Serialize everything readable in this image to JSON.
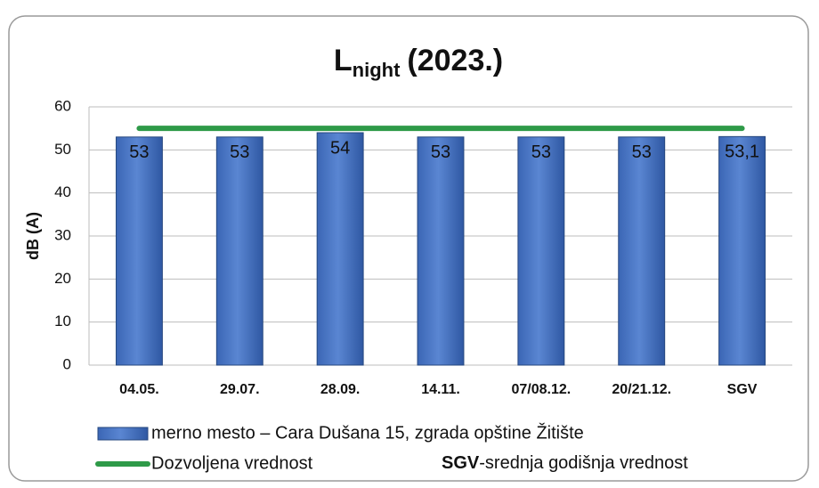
{
  "chart_data": {
    "type": "bar",
    "title_parts": [
      "L",
      "night",
      "(2023.)"
    ],
    "y_label": "dB (A)",
    "categories": [
      "04.05.",
      "29.07.",
      "28.09.",
      "14.11.",
      "07/08.12.",
      "20/21.12.",
      "SGV"
    ],
    "series": [
      {
        "name": "merno mesto – Cara Dušana 15, zgrada opštine Žitište",
        "type": "bar",
        "color": "#4472c4",
        "values": [
          53,
          53,
          54,
          53,
          53,
          53,
          53.1
        ],
        "value_labels": [
          "53",
          "53",
          "54",
          "53",
          "53",
          "53",
          "53,1"
        ]
      },
      {
        "name": "Dozvoljena vrednost",
        "type": "line",
        "color": "#2e9a48",
        "values": [
          55,
          55,
          55,
          55,
          55,
          55,
          55
        ]
      }
    ],
    "legend_note": {
      "abbr": "SGV",
      "text": "-srednja godišnja vrednost"
    },
    "ylim": [
      0,
      60
    ],
    "yticks": [
      0,
      10,
      20,
      30,
      40,
      50,
      60
    ],
    "grid": true
  }
}
